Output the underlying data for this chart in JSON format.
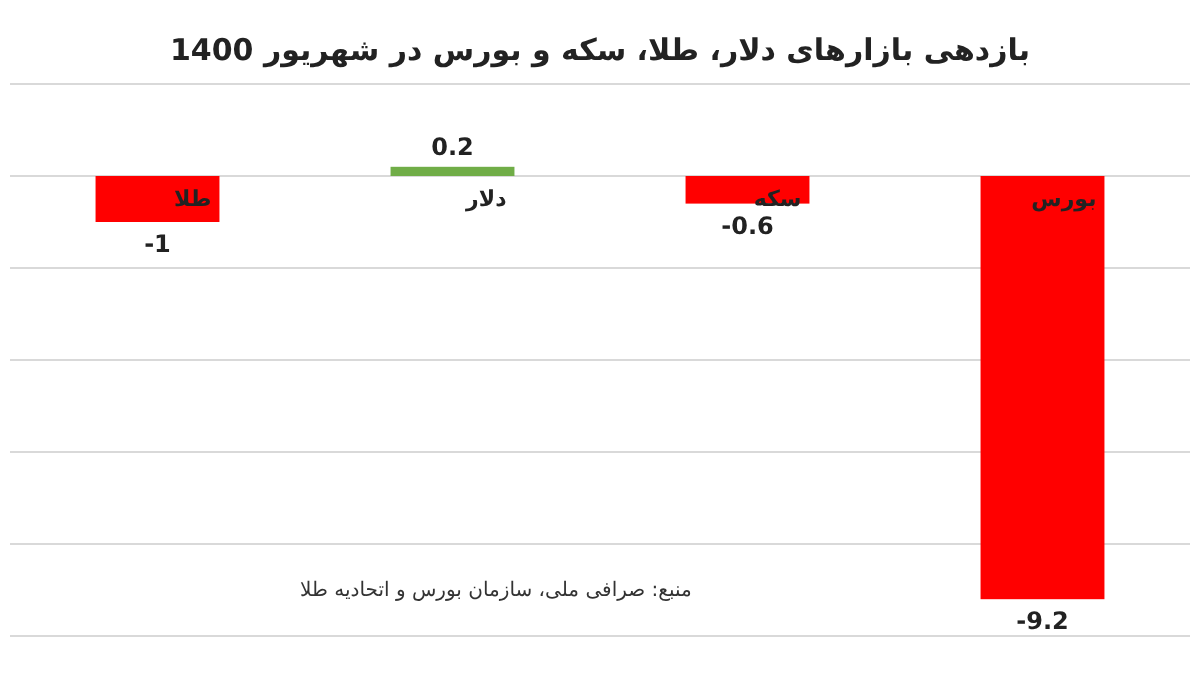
{
  "chart_data": {
    "type": "bar",
    "title": "بازدهی بازارهای دلار، طلا، سکه و بورس در شهریور 1400",
    "categories": [
      "طلا",
      "دلار",
      "سکه",
      "بورس"
    ],
    "values": [
      -1,
      0.2,
      -0.6,
      -9.2
    ],
    "colors": [
      "#ff0000",
      "#70ad47",
      "#ff0000",
      "#ff0000"
    ],
    "ylim": [
      -10,
      2
    ],
    "yticks": [
      {
        "value": -10,
        "label": null
      },
      {
        "value": -8,
        "label": null
      },
      {
        "value": -6,
        "label": null
      },
      {
        "value": -4,
        "label": null
      },
      {
        "value": -2,
        "label": null
      },
      {
        "value": 0,
        "label": null
      },
      {
        "value": 2,
        "label": null
      }
    ],
    "grid": "y",
    "data_labels": true,
    "annotations": [
      "منبع: صرافی ملی، سازمان بورس و اتحادیه طلا"
    ]
  }
}
